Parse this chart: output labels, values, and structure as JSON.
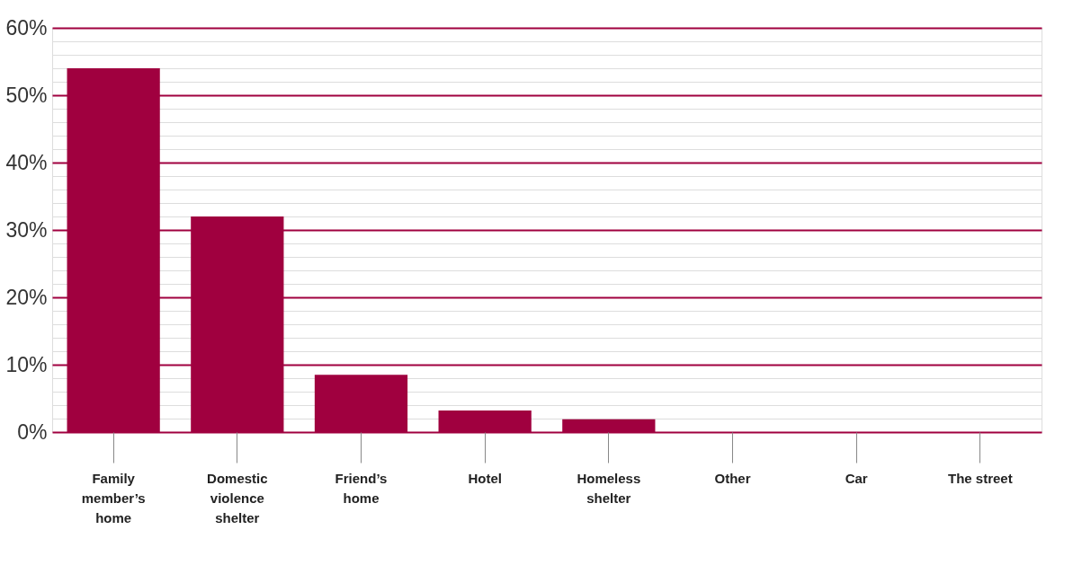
{
  "chart_data": {
    "type": "bar",
    "categories": [
      "Family member’s home",
      "Domestic violence shelter",
      "Friend’s home",
      "Hotel",
      "Homeless shelter",
      "Other",
      "Car",
      "The street"
    ],
    "values": [
      54,
      32,
      8.5,
      3.2,
      1.9,
      0,
      0,
      0
    ],
    "color": "#a0003f",
    "ylim": [
      0,
      60
    ],
    "yticks": [
      {
        "value": 0,
        "label": "0%"
      },
      {
        "value": 2,
        "label": null
      },
      {
        "value": 4,
        "label": null
      },
      {
        "value": 6,
        "label": null
      },
      {
        "value": 8,
        "label": null
      },
      {
        "value": 10,
        "label": "10%"
      },
      {
        "value": 12,
        "label": null
      },
      {
        "value": 14,
        "label": null
      },
      {
        "value": 16,
        "label": null
      },
      {
        "value": 18,
        "label": null
      },
      {
        "value": 20,
        "label": "20%"
      },
      {
        "value": 22,
        "label": null
      },
      {
        "value": 24,
        "label": null
      },
      {
        "value": 26,
        "label": null
      },
      {
        "value": 28,
        "label": null
      },
      {
        "value": 30,
        "label": "30%"
      },
      {
        "value": 32,
        "label": null
      },
      {
        "value": 34,
        "label": null
      },
      {
        "value": 36,
        "label": null
      },
      {
        "value": 38,
        "label": null
      },
      {
        "value": 40,
        "label": "40%"
      },
      {
        "value": 42,
        "label": null
      },
      {
        "value": 44,
        "label": null
      },
      {
        "value": 46,
        "label": null
      },
      {
        "value": 48,
        "label": null
      },
      {
        "value": 50,
        "label": "50%"
      },
      {
        "value": 52,
        "label": null
      },
      {
        "value": 54,
        "label": null
      },
      {
        "value": 56,
        "label": null
      },
      {
        "value": 58,
        "label": null
      },
      {
        "value": 60,
        "label": "60%"
      }
    ],
    "grid": "y"
  }
}
